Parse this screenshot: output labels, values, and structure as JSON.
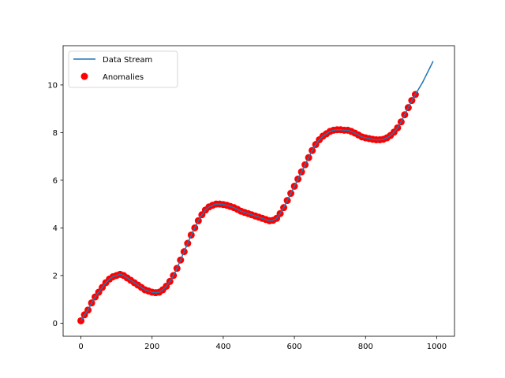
{
  "chart_data": {
    "type": "line",
    "title": "",
    "xlabel": "",
    "ylabel": "",
    "xlim": [
      -50,
      1050
    ],
    "ylim": [
      -0.55,
      11.65
    ],
    "xticks": [
      0,
      200,
      400,
      600,
      800,
      1000
    ],
    "yticks": [
      0,
      2,
      4,
      6,
      8,
      10
    ],
    "grid": false,
    "legend_placement": "top-left",
    "colors": {
      "line": "#1f77b4",
      "anomalies": "#ff0000"
    },
    "series": [
      {
        "name": "Data Stream",
        "kind": "line",
        "x": [
          0,
          10,
          20,
          30,
          40,
          50,
          60,
          70,
          80,
          90,
          100,
          110,
          120,
          130,
          140,
          150,
          160,
          170,
          180,
          190,
          200,
          210,
          220,
          230,
          240,
          250,
          260,
          270,
          280,
          290,
          300,
          310,
          320,
          330,
          340,
          350,
          360,
          370,
          380,
          390,
          400,
          410,
          420,
          430,
          440,
          450,
          460,
          470,
          480,
          490,
          500,
          510,
          520,
          530,
          540,
          550,
          560,
          570,
          580,
          590,
          600,
          610,
          620,
          630,
          640,
          650,
          660,
          670,
          680,
          690,
          700,
          710,
          720,
          730,
          740,
          750,
          760,
          770,
          780,
          790,
          800,
          810,
          820,
          830,
          840,
          850,
          860,
          870,
          880,
          890,
          900,
          910,
          920,
          930,
          940,
          950,
          960,
          970,
          980,
          990
        ],
        "y": [
          0.1,
          0.35,
          0.55,
          0.85,
          1.1,
          1.3,
          1.5,
          1.7,
          1.85,
          1.95,
          2.0,
          2.05,
          2.0,
          1.9,
          1.8,
          1.7,
          1.6,
          1.5,
          1.4,
          1.35,
          1.3,
          1.28,
          1.3,
          1.4,
          1.55,
          1.75,
          2.0,
          2.3,
          2.65,
          3.0,
          3.35,
          3.7,
          4.0,
          4.3,
          4.55,
          4.75,
          4.88,
          4.95,
          5.0,
          5.0,
          4.98,
          4.95,
          4.9,
          4.85,
          4.78,
          4.7,
          4.65,
          4.6,
          4.55,
          4.5,
          4.45,
          4.4,
          4.35,
          4.3,
          4.32,
          4.4,
          4.6,
          4.85,
          5.15,
          5.45,
          5.75,
          6.05,
          6.35,
          6.65,
          6.95,
          7.25,
          7.5,
          7.7,
          7.85,
          7.95,
          8.05,
          8.1,
          8.12,
          8.12,
          8.1,
          8.1,
          8.05,
          7.98,
          7.9,
          7.82,
          7.78,
          7.75,
          7.72,
          7.7,
          7.7,
          7.72,
          7.78,
          7.88,
          8.02,
          8.2,
          8.45,
          8.75,
          9.05,
          9.35,
          9.6,
          9.85,
          10.1,
          10.4,
          10.7,
          11.0
        ]
      },
      {
        "name": "Anomalies",
        "kind": "scatter",
        "x": [
          0,
          10,
          20,
          30,
          40,
          50,
          60,
          70,
          80,
          90,
          100,
          110,
          120,
          130,
          140,
          150,
          160,
          170,
          180,
          190,
          200,
          210,
          220,
          230,
          240,
          250,
          260,
          270,
          280,
          290,
          300,
          310,
          320,
          330,
          340,
          350,
          360,
          370,
          380,
          390,
          400,
          410,
          420,
          430,
          440,
          450,
          460,
          470,
          480,
          490,
          500,
          510,
          520,
          530,
          540,
          550,
          560,
          570,
          580,
          590,
          600,
          610,
          620,
          630,
          640,
          650,
          660,
          670,
          680,
          690,
          700,
          710,
          720,
          730,
          740,
          750,
          760,
          770,
          780,
          790,
          800,
          810,
          820,
          830,
          840,
          850,
          860,
          870,
          880,
          890,
          900,
          910,
          920,
          930,
          940
        ],
        "y": [
          0.1,
          0.35,
          0.55,
          0.85,
          1.1,
          1.3,
          1.5,
          1.7,
          1.85,
          1.95,
          2.0,
          2.05,
          2.0,
          1.9,
          1.8,
          1.7,
          1.6,
          1.5,
          1.4,
          1.35,
          1.3,
          1.28,
          1.3,
          1.4,
          1.55,
          1.75,
          2.0,
          2.3,
          2.65,
          3.0,
          3.35,
          3.7,
          4.0,
          4.3,
          4.55,
          4.75,
          4.88,
          4.95,
          5.0,
          5.0,
          4.98,
          4.95,
          4.9,
          4.85,
          4.78,
          4.7,
          4.65,
          4.6,
          4.55,
          4.5,
          4.45,
          4.4,
          4.35,
          4.3,
          4.32,
          4.4,
          4.6,
          4.85,
          5.15,
          5.45,
          5.75,
          6.05,
          6.35,
          6.65,
          6.95,
          7.25,
          7.5,
          7.7,
          7.85,
          7.95,
          8.05,
          8.1,
          8.12,
          8.12,
          8.1,
          8.1,
          8.05,
          7.98,
          7.9,
          7.82,
          7.78,
          7.75,
          7.72,
          7.7,
          7.7,
          7.72,
          7.78,
          7.88,
          8.02,
          8.2,
          8.45,
          8.75,
          9.05,
          9.35,
          9.6
        ]
      }
    ]
  }
}
